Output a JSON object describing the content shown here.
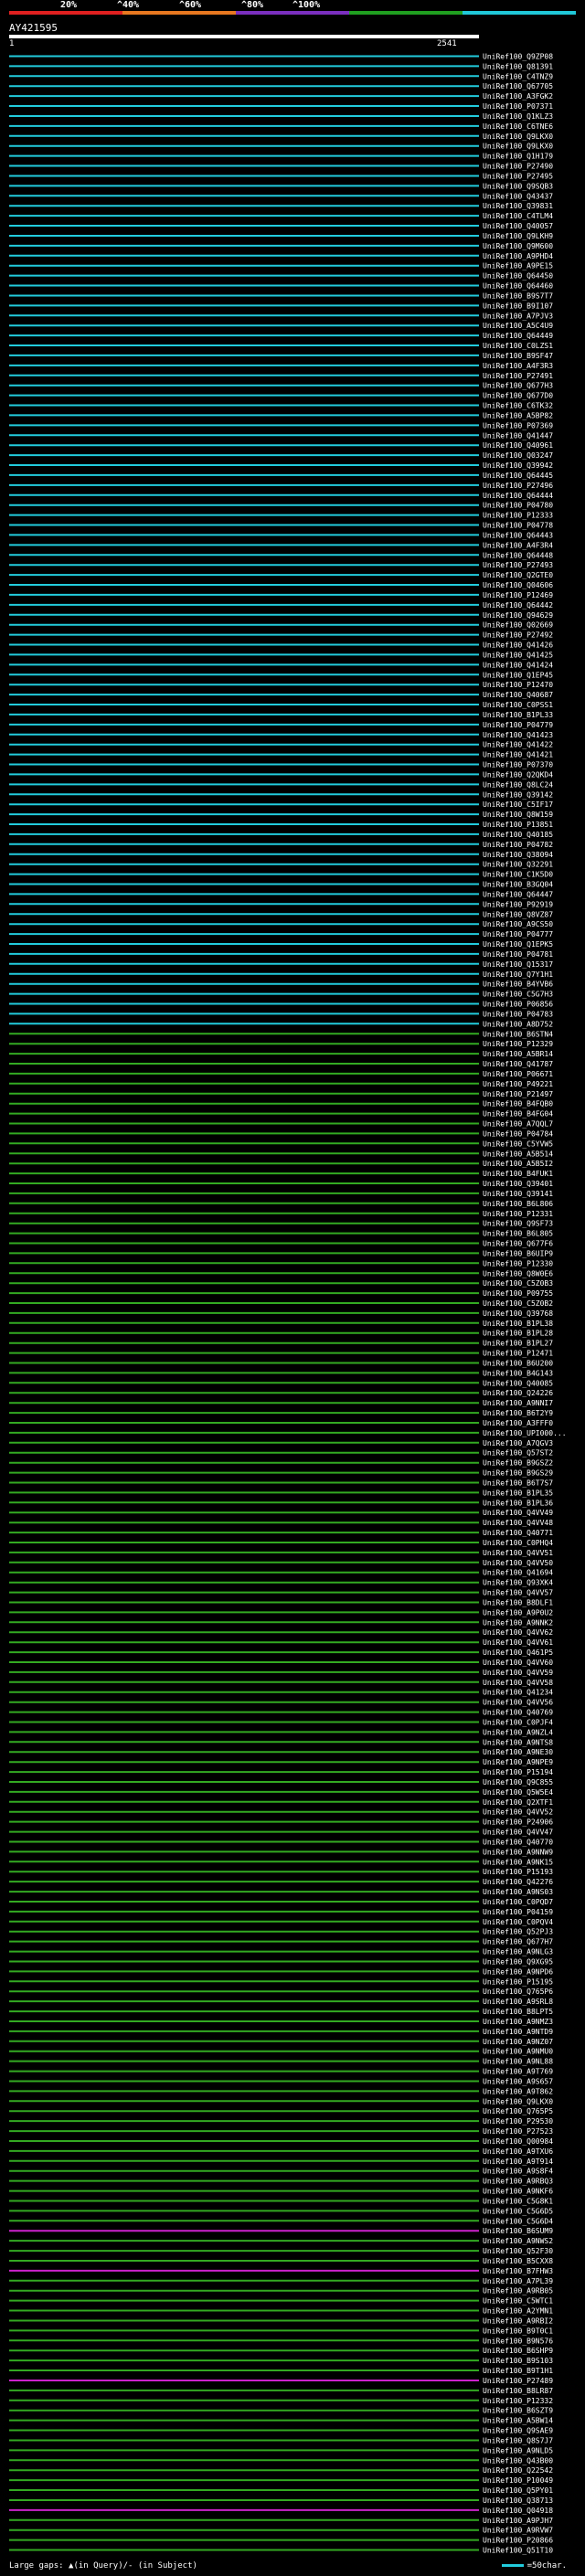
{
  "header": {
    "scale_labels": [
      "20%",
      "^40%",
      "^60%",
      "^80%",
      "^100%"
    ],
    "colorbar_colors": [
      "#e02020",
      "#e87820",
      "#7b2fbf",
      "#20a020",
      "#20c8d8"
    ],
    "query_id": "AY421595",
    "range_start": "1",
    "range_end": "2541"
  },
  "legend": {
    "text": "Large gaps: ▲(in Query)/- (in Subject)",
    "scale_text": "=50char."
  },
  "hits": [
    {
      "id": "UniRef100_Q9ZP08",
      "color": "cyan"
    },
    {
      "id": "UniRef100_Q81391",
      "color": "cyan"
    },
    {
      "id": "UniRef100_C4TNZ9",
      "color": "cyan"
    },
    {
      "id": "UniRef100_Q67705",
      "color": "cyan"
    },
    {
      "id": "UniRef100_A3FGK2",
      "color": "cyan"
    },
    {
      "id": "UniRef100_P07371",
      "color": "cyan"
    },
    {
      "id": "UniRef100_Q1KLZ3",
      "color": "cyan"
    },
    {
      "id": "UniRef100_C6TNE6",
      "color": "cyan"
    },
    {
      "id": "UniRef100_Q9LKX0",
      "color": "cyan"
    },
    {
      "id": "UniRef100_Q9LKX0",
      "color": "cyan"
    },
    {
      "id": "UniRef100_Q1H179",
      "color": "cyan"
    },
    {
      "id": "UniRef100_P27490",
      "color": "cyan"
    },
    {
      "id": "UniRef100_P27495",
      "color": "cyan"
    },
    {
      "id": "UniRef100_Q9SQB3",
      "color": "cyan"
    },
    {
      "id": "UniRef100_Q43437",
      "color": "cyan"
    },
    {
      "id": "UniRef100_Q39831",
      "color": "cyan"
    },
    {
      "id": "UniRef100_C4TLM4",
      "color": "cyan"
    },
    {
      "id": "UniRef100_Q40057",
      "color": "cyan"
    },
    {
      "id": "UniRef100_Q9LKH9",
      "color": "cyan"
    },
    {
      "id": "UniRef100_Q9M600",
      "color": "cyan"
    },
    {
      "id": "UniRef100_A9PHD4",
      "color": "cyan"
    },
    {
      "id": "UniRef100_A9PE15",
      "color": "cyan"
    },
    {
      "id": "UniRef100_Q64450",
      "color": "cyan"
    },
    {
      "id": "UniRef100_Q64460",
      "color": "cyan"
    },
    {
      "id": "UniRef100_B9S7T7",
      "color": "cyan"
    },
    {
      "id": "UniRef100_B9I107",
      "color": "cyan"
    },
    {
      "id": "UniRef100_A7PJV3",
      "color": "cyan"
    },
    {
      "id": "UniRef100_A5C4U9",
      "color": "cyan"
    },
    {
      "id": "UniRef100_Q64449",
      "color": "cyan"
    },
    {
      "id": "UniRef100_C0LZS1",
      "color": "cyan"
    },
    {
      "id": "UniRef100_B9SF47",
      "color": "cyan"
    },
    {
      "id": "UniRef100_A4F3R3",
      "color": "cyan"
    },
    {
      "id": "UniRef100_P27491",
      "color": "cyan"
    },
    {
      "id": "UniRef100_Q677H3",
      "color": "cyan"
    },
    {
      "id": "UniRef100_Q677D0",
      "color": "cyan"
    },
    {
      "id": "UniRef100_C6TK32",
      "color": "cyan"
    },
    {
      "id": "UniRef100_A5BP82",
      "color": "cyan"
    },
    {
      "id": "UniRef100_P07369",
      "color": "cyan"
    },
    {
      "id": "UniRef100_Q41447",
      "color": "cyan"
    },
    {
      "id": "UniRef100_Q40961",
      "color": "cyan"
    },
    {
      "id": "UniRef100_Q03247",
      "color": "cyan"
    },
    {
      "id": "UniRef100_Q39942",
      "color": "cyan"
    },
    {
      "id": "UniRef100_Q64445",
      "color": "cyan"
    },
    {
      "id": "UniRef100_P27496",
      "color": "cyan"
    },
    {
      "id": "UniRef100_Q64444",
      "color": "cyan"
    },
    {
      "id": "UniRef100_P04780",
      "color": "cyan"
    },
    {
      "id": "UniRef100_P12333",
      "color": "cyan"
    },
    {
      "id": "UniRef100_P04778",
      "color": "cyan"
    },
    {
      "id": "UniRef100_Q64443",
      "color": "cyan"
    },
    {
      "id": "UniRef100_A4F3R4",
      "color": "cyan"
    },
    {
      "id": "UniRef100_Q64448",
      "color": "cyan"
    },
    {
      "id": "UniRef100_P27493",
      "color": "cyan"
    },
    {
      "id": "UniRef100_Q2GTE0",
      "color": "cyan"
    },
    {
      "id": "UniRef100_Q04606",
      "color": "cyan"
    },
    {
      "id": "UniRef100_P12469",
      "color": "cyan"
    },
    {
      "id": "UniRef100_Q64442",
      "color": "cyan"
    },
    {
      "id": "UniRef100_Q94629",
      "color": "cyan"
    },
    {
      "id": "UniRef100_Q02669",
      "color": "cyan"
    },
    {
      "id": "UniRef100_P27492",
      "color": "cyan"
    },
    {
      "id": "UniRef100_Q41426",
      "color": "cyan"
    },
    {
      "id": "UniRef100_Q41425",
      "color": "cyan"
    },
    {
      "id": "UniRef100_Q41424",
      "color": "cyan"
    },
    {
      "id": "UniRef100_Q1EP45",
      "color": "cyan"
    },
    {
      "id": "UniRef100_P12470",
      "color": "cyan"
    },
    {
      "id": "UniRef100_Q40687",
      "color": "cyan"
    },
    {
      "id": "UniRef100_C0PSS1",
      "color": "cyan"
    },
    {
      "id": "UniRef100_B1PL33",
      "color": "cyan"
    },
    {
      "id": "UniRef100_P04779",
      "color": "cyan"
    },
    {
      "id": "UniRef100_Q41423",
      "color": "cyan"
    },
    {
      "id": "UniRef100_Q41422",
      "color": "cyan"
    },
    {
      "id": "UniRef100_Q41421",
      "color": "cyan"
    },
    {
      "id": "UniRef100_P07370",
      "color": "cyan"
    },
    {
      "id": "UniRef100_Q2QKD4",
      "color": "cyan"
    },
    {
      "id": "UniRef100_Q8LC24",
      "color": "cyan"
    },
    {
      "id": "UniRef100_Q39142",
      "color": "cyan"
    },
    {
      "id": "UniRef100_C5IF17",
      "color": "cyan"
    },
    {
      "id": "UniRef100_Q8W159",
      "color": "cyan"
    },
    {
      "id": "UniRef100_P13851",
      "color": "cyan"
    },
    {
      "id": "UniRef100_Q40185",
      "color": "cyan"
    },
    {
      "id": "UniRef100_P04782",
      "color": "cyan"
    },
    {
      "id": "UniRef100_Q38094",
      "color": "cyan"
    },
    {
      "id": "UniRef100_Q32291",
      "color": "cyan"
    },
    {
      "id": "UniRef100_C1K5D0",
      "color": "cyan"
    },
    {
      "id": "UniRef100_B3GQ04",
      "color": "cyan"
    },
    {
      "id": "UniRef100_Q64447",
      "color": "cyan"
    },
    {
      "id": "UniRef100_P92919",
      "color": "cyan"
    },
    {
      "id": "UniRef100_Q8VZ87",
      "color": "cyan"
    },
    {
      "id": "UniRef100_A9CS50",
      "color": "cyan"
    },
    {
      "id": "UniRef100_P04777",
      "color": "cyan"
    },
    {
      "id": "UniRef100_Q1EPK5",
      "color": "cyan"
    },
    {
      "id": "UniRef100_P04781",
      "color": "cyan"
    },
    {
      "id": "UniRef100_Q15317",
      "color": "cyan"
    },
    {
      "id": "UniRef100_Q7Y1H1",
      "color": "cyan"
    },
    {
      "id": "UniRef100_B4YVB6",
      "color": "cyan"
    },
    {
      "id": "UniRef100_C5G7H3",
      "color": "cyan"
    },
    {
      "id": "UniRef100_P06856",
      "color": "cyan"
    },
    {
      "id": "UniRef100_P04783",
      "color": "cyan"
    },
    {
      "id": "UniRef100_A8D752",
      "color": "cyan"
    },
    {
      "id": "UniRef100_B6STN4",
      "color": "green"
    },
    {
      "id": "UniRef100_P12329",
      "color": "green"
    },
    {
      "id": "UniRef100_A5BR14",
      "color": "green"
    },
    {
      "id": "UniRef100_Q41787",
      "color": "green"
    },
    {
      "id": "UniRef100_P06671",
      "color": "green"
    },
    {
      "id": "UniRef100_P49221",
      "color": "green"
    },
    {
      "id": "UniRef100_P21497",
      "color": "green"
    },
    {
      "id": "UniRef100_B4FQB0",
      "color": "green"
    },
    {
      "id": "UniRef100_B4FG04",
      "color": "green"
    },
    {
      "id": "UniRef100_A7QQL7",
      "color": "green"
    },
    {
      "id": "UniRef100_P04784",
      "color": "green"
    },
    {
      "id": "UniRef100_C5YVW5",
      "color": "green"
    },
    {
      "id": "UniRef100_A5B514",
      "color": "green"
    },
    {
      "id": "UniRef100_A5B5I2",
      "color": "green"
    },
    {
      "id": "UniRef100_B4FUK1",
      "color": "green"
    },
    {
      "id": "UniRef100_Q39401",
      "color": "green"
    },
    {
      "id": "UniRef100_Q39141",
      "color": "green"
    },
    {
      "id": "UniRef100_B6L806",
      "color": "green"
    },
    {
      "id": "UniRef100_P12331",
      "color": "green"
    },
    {
      "id": "UniRef100_Q9SF73",
      "color": "green"
    },
    {
      "id": "UniRef100_B6L805",
      "color": "green"
    },
    {
      "id": "UniRef100_Q677F6",
      "color": "green"
    },
    {
      "id": "UniRef100_B6UIP9",
      "color": "green"
    },
    {
      "id": "UniRef100_P12330",
      "color": "green"
    },
    {
      "id": "UniRef100_Q8W0E6",
      "color": "green"
    },
    {
      "id": "UniRef100_C5Z0B3",
      "color": "green"
    },
    {
      "id": "UniRef100_P09755",
      "color": "green"
    },
    {
      "id": "UniRef100_C5Z0B2",
      "color": "green"
    },
    {
      "id": "UniRef100_Q39768",
      "color": "green"
    },
    {
      "id": "UniRef100_B1PL38",
      "color": "green"
    },
    {
      "id": "UniRef100_B1PL28",
      "color": "green"
    },
    {
      "id": "UniRef100_B1PL27",
      "color": "green"
    },
    {
      "id": "UniRef100_P12471",
      "color": "green"
    },
    {
      "id": "UniRef100_B6U200",
      "color": "green"
    },
    {
      "id": "UniRef100_B4G143",
      "color": "green"
    },
    {
      "id": "UniRef100_Q40085",
      "color": "green"
    },
    {
      "id": "UniRef100_Q24226",
      "color": "green"
    },
    {
      "id": "UniRef100_A9NNI7",
      "color": "green"
    },
    {
      "id": "UniRef100_B6T2Y9",
      "color": "green"
    },
    {
      "id": "UniRef100_A3FFF0",
      "color": "green"
    },
    {
      "id": "UniRef100_UPI000...",
      "color": "green"
    },
    {
      "id": "UniRef100_A7QGV3",
      "color": "green"
    },
    {
      "id": "UniRef100_Q57ST2",
      "color": "green"
    },
    {
      "id": "UniRef100_B9GSZ2",
      "color": "green"
    },
    {
      "id": "UniRef100_B9GS29",
      "color": "green"
    },
    {
      "id": "UniRef100_B6T7S7",
      "color": "green"
    },
    {
      "id": "UniRef100_B1PL35",
      "color": "green"
    },
    {
      "id": "UniRef100_B1PL36",
      "color": "green"
    },
    {
      "id": "UniRef100_Q4VV49",
      "color": "green"
    },
    {
      "id": "UniRef100_Q4VV48",
      "color": "green"
    },
    {
      "id": "UniRef100_Q40771",
      "color": "green"
    },
    {
      "id": "UniRef100_C0PHQ4",
      "color": "green"
    },
    {
      "id": "UniRef100_Q4VV51",
      "color": "green"
    },
    {
      "id": "UniRef100_Q4VV50",
      "color": "green"
    },
    {
      "id": "UniRef100_Q41694",
      "color": "green"
    },
    {
      "id": "UniRef100_Q93XK4",
      "color": "green"
    },
    {
      "id": "UniRef100_Q4VV57",
      "color": "green"
    },
    {
      "id": "UniRef100_B8DLF1",
      "color": "green"
    },
    {
      "id": "UniRef100_A9P0U2",
      "color": "green"
    },
    {
      "id": "UniRef100_A9NNK2",
      "color": "green"
    },
    {
      "id": "UniRef100_Q4VV62",
      "color": "green"
    },
    {
      "id": "UniRef100_Q4VV61",
      "color": "green"
    },
    {
      "id": "UniRef100_Q461P5",
      "color": "green"
    },
    {
      "id": "UniRef100_Q4VV60",
      "color": "green"
    },
    {
      "id": "UniRef100_Q4VV59",
      "color": "green"
    },
    {
      "id": "UniRef100_Q4VV58",
      "color": "green"
    },
    {
      "id": "UniRef100_Q41234",
      "color": "green"
    },
    {
      "id": "UniRef100_Q4VV56",
      "color": "green"
    },
    {
      "id": "UniRef100_Q40769",
      "color": "green"
    },
    {
      "id": "UniRef100_C0PJF4",
      "color": "green"
    },
    {
      "id": "UniRef100_A9NZL4",
      "color": "green"
    },
    {
      "id": "UniRef100_A9NTS8",
      "color": "green"
    },
    {
      "id": "UniRef100_A9NE30",
      "color": "green"
    },
    {
      "id": "UniRef100_A9NPE9",
      "color": "green"
    },
    {
      "id": "UniRef100_P15194",
      "color": "green"
    },
    {
      "id": "UniRef100_Q9C855",
      "color": "green"
    },
    {
      "id": "UniRef100_Q5W5E4",
      "color": "green"
    },
    {
      "id": "UniRef100_Q2XTF1",
      "color": "green"
    },
    {
      "id": "UniRef100_Q4VV52",
      "color": "green"
    },
    {
      "id": "UniRef100_P24906",
      "color": "green"
    },
    {
      "id": "UniRef100_Q4VV47",
      "color": "green"
    },
    {
      "id": "UniRef100_Q40770",
      "color": "green"
    },
    {
      "id": "UniRef100_A9NNW9",
      "color": "green"
    },
    {
      "id": "UniRef100_A9NK15",
      "color": "green"
    },
    {
      "id": "UniRef100_P15193",
      "color": "green"
    },
    {
      "id": "UniRef100_Q42276",
      "color": "green"
    },
    {
      "id": "UniRef100_A9NS03",
      "color": "green"
    },
    {
      "id": "UniRef100_C0PQD7",
      "color": "green"
    },
    {
      "id": "UniRef100_P04159",
      "color": "green"
    },
    {
      "id": "UniRef100_C0PQV4",
      "color": "green"
    },
    {
      "id": "UniRef100_Q52PJ3",
      "color": "green"
    },
    {
      "id": "UniRef100_Q677H7",
      "color": "green"
    },
    {
      "id": "UniRef100_A9NLG3",
      "color": "green"
    },
    {
      "id": "UniRef100_Q9XG95",
      "color": "green"
    },
    {
      "id": "UniRef100_A9NPD6",
      "color": "green"
    },
    {
      "id": "UniRef100_P15195",
      "color": "green"
    },
    {
      "id": "UniRef100_Q765P6",
      "color": "green"
    },
    {
      "id": "UniRef100_A9SRL8",
      "color": "green"
    },
    {
      "id": "UniRef100_B8LPT5",
      "color": "green"
    },
    {
      "id": "UniRef100_A9NMZ3",
      "color": "green"
    },
    {
      "id": "UniRef100_A9NTD9",
      "color": "green"
    },
    {
      "id": "UniRef100_A9NZ07",
      "color": "green"
    },
    {
      "id": "UniRef100_A9NMU0",
      "color": "green"
    },
    {
      "id": "UniRef100_A9NL88",
      "color": "green"
    },
    {
      "id": "UniRef100_A9T769",
      "color": "green"
    },
    {
      "id": "UniRef100_A9S657",
      "color": "green"
    },
    {
      "id": "UniRef100_A9T862",
      "color": "green"
    },
    {
      "id": "UniRef100_Q9LKX0",
      "color": "green"
    },
    {
      "id": "UniRef100_Q765P5",
      "color": "green"
    },
    {
      "id": "UniRef100_P29530",
      "color": "green"
    },
    {
      "id": "UniRef100_P27523",
      "color": "green"
    },
    {
      "id": "UniRef100_Q00984",
      "color": "green"
    },
    {
      "id": "UniRef100_A9TXU6",
      "color": "green"
    },
    {
      "id": "UniRef100_A9T914",
      "color": "green"
    },
    {
      "id": "UniRef100_A9S8F4",
      "color": "green"
    },
    {
      "id": "UniRef100_A9RBQ3",
      "color": "green"
    },
    {
      "id": "UniRef100_A9NKF6",
      "color": "green"
    },
    {
      "id": "UniRef100_C5G8K1",
      "color": "green"
    },
    {
      "id": "UniRef100_C5G6D5",
      "color": "green"
    },
    {
      "id": "UniRef100_C5G6D4",
      "color": "green"
    },
    {
      "id": "UniRef100_B6SUM9",
      "color": "magenta"
    },
    {
      "id": "UniRef100_A9NWS2",
      "color": "green"
    },
    {
      "id": "UniRef100_Q52F30",
      "color": "green"
    },
    {
      "id": "UniRef100_B5CXX8",
      "color": "green"
    },
    {
      "id": "UniRef100_B7FHW3",
      "color": "magenta"
    },
    {
      "id": "UniRef100_A7PL39",
      "color": "green"
    },
    {
      "id": "UniRef100_A9RB05",
      "color": "green"
    },
    {
      "id": "UniRef100_C5WTC1",
      "color": "green"
    },
    {
      "id": "UniRef100_A2YMN1",
      "color": "green"
    },
    {
      "id": "UniRef100_A9RBI2",
      "color": "green"
    },
    {
      "id": "UniRef100_B9T0C1",
      "color": "green"
    },
    {
      "id": "UniRef100_B9N576",
      "color": "green"
    },
    {
      "id": "UniRef100_B6SHP9",
      "color": "green"
    },
    {
      "id": "UniRef100_B9S103",
      "color": "green"
    },
    {
      "id": "UniRef100_B9T1H1",
      "color": "green"
    },
    {
      "id": "UniRef100_P27489",
      "color": "magenta"
    },
    {
      "id": "UniRef100_B8LR87",
      "color": "green"
    },
    {
      "id": "UniRef100_P12332",
      "color": "green"
    },
    {
      "id": "UniRef100_B6SZT9",
      "color": "green"
    },
    {
      "id": "UniRef100_A5BW14",
      "color": "green"
    },
    {
      "id": "UniRef100_Q9SAE9",
      "color": "green"
    },
    {
      "id": "UniRef100_Q8S7J7",
      "color": "green"
    },
    {
      "id": "UniRef100_A9NLD5",
      "color": "green"
    },
    {
      "id": "UniRef100_Q43B00",
      "color": "green"
    },
    {
      "id": "UniRef100_Q22542",
      "color": "green"
    },
    {
      "id": "UniRef100_P10049",
      "color": "green"
    },
    {
      "id": "UniRef100_Q5PY01",
      "color": "green"
    },
    {
      "id": "UniRef100_Q38713",
      "color": "green"
    },
    {
      "id": "UniRef100_Q04918",
      "color": "magenta"
    },
    {
      "id": "UniRef100_A9PJH7",
      "color": "green"
    },
    {
      "id": "UniRef100_A9RVW7",
      "color": "green"
    },
    {
      "id": "UniRef100_P20866",
      "color": "green"
    },
    {
      "id": "UniRef100_Q51T10",
      "color": "green"
    }
  ]
}
